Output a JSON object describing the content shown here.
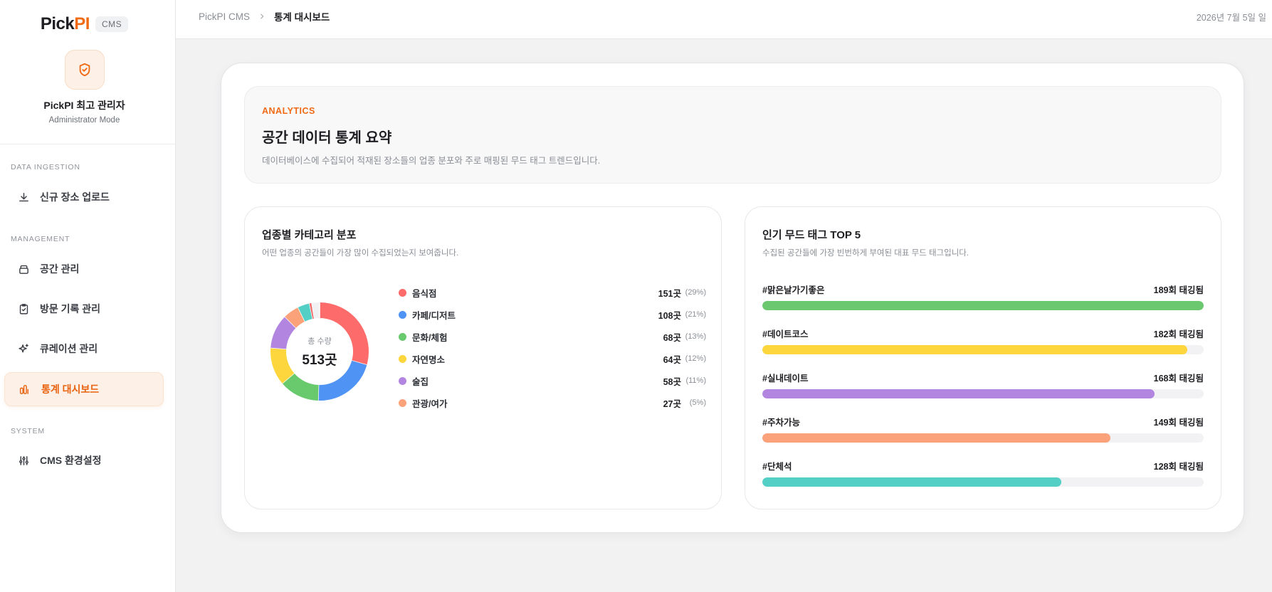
{
  "brand": {
    "logo_main": "Pick",
    "logo_accent": "PI",
    "badge": "CMS",
    "accent": "#f06a14"
  },
  "admin": {
    "name": "PickPI 최고 관리자",
    "mode": "Administrator Mode"
  },
  "nav": {
    "section_ingestion": "DATA INGESTION",
    "section_management": "MANAGEMENT",
    "section_system": "SYSTEM",
    "upload": "신규 장소 업로드",
    "spaces": "공간 관리",
    "visits": "방문 기록 관리",
    "curation": "큐레이션 관리",
    "stats": "통계 대시보드",
    "settings": "CMS 환경설정"
  },
  "header": {
    "breadcrumb_root": "PickPI CMS",
    "breadcrumb_current": "통계 대시보드",
    "date": "2026년 7월 5일 일"
  },
  "summary": {
    "eyebrow": "ANALYTICS",
    "title": "공간 데이터 통계 요약",
    "description": "데이터베이스에 수집되어 적재된 장소들의 업종 분포와 주로 매핑된 무드 태그 트렌드입니다."
  },
  "category_panel": {
    "title": "업종별 카테고리 분포",
    "description": "어떤 업종의 공간들이 가장 많이 수집되었는지 보여줍니다.",
    "total_label": "총 수량",
    "total_value": "513곳"
  },
  "tag_panel": {
    "title": "인기 무드 태그 TOP 5",
    "description": "수집된 공간들에 가장 빈번하게 부여된 대표 무드 태그입니다."
  },
  "chart_data": [
    {
      "type": "pie",
      "total": 513,
      "categories": [
        "음식점",
        "카페/디저트",
        "문화/체험",
        "자연명소",
        "술집",
        "관광/여가"
      ],
      "values": [
        151,
        108,
        68,
        64,
        58,
        27
      ],
      "value_labels": [
        "151곳",
        "108곳",
        "68곳",
        "64곳",
        "58곳",
        "27곳"
      ],
      "percent_labels": [
        "(29%)",
        "(21%)",
        "(13%)",
        "(12%)",
        "(11%)",
        "(5%)"
      ],
      "colors": [
        "#fd6b6b",
        "#4f94f5",
        "#69c96d",
        "#fcd63c",
        "#b285e0",
        "#fca27a"
      ],
      "extra_segments": [
        {
          "value": 20,
          "color": "#54cfc5"
        },
        {
          "value": 4,
          "color": "#f06a6a"
        },
        {
          "value": 13,
          "color": "#f1f1f3"
        }
      ]
    },
    {
      "type": "bar",
      "orientation": "horizontal",
      "categories": [
        "#맑은날가기좋은",
        "#데이트코스",
        "#실내데이트",
        "#주차가능",
        "#단체석"
      ],
      "values": [
        189,
        182,
        168,
        149,
        128
      ],
      "value_labels": [
        "189회 태깅됨",
        "182회 태깅됨",
        "168회 태깅됨",
        "149회 태깅됨",
        "128회 태깅됨"
      ],
      "max": 189,
      "colors": [
        "#6cc86f",
        "#fcd63c",
        "#b285e0",
        "#fca27a",
        "#54cfc5"
      ]
    }
  ]
}
